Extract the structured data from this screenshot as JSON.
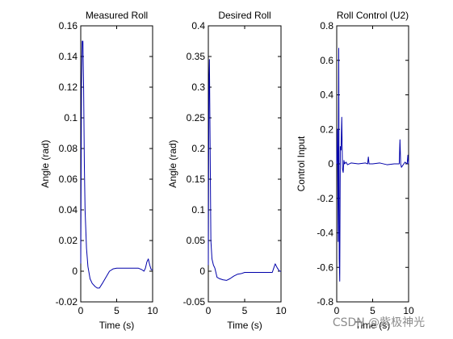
{
  "chart_data": [
    {
      "type": "line",
      "title": "Measured Roll",
      "xlabel": "Time (s)",
      "ylabel": "Angle (rad)",
      "xlim": [
        0,
        10
      ],
      "ylim": [
        -0.02,
        0.16
      ],
      "xticks": [
        0,
        5,
        10
      ],
      "xtick_labels": [
        "0",
        "5",
        "10"
      ],
      "yticks": [
        -0.02,
        0,
        0.02,
        0.04,
        0.06,
        0.08,
        0.1,
        0.12,
        0.14,
        0.16
      ],
      "ytick_labels": [
        "-0.02",
        "0",
        "0.02",
        "0.04",
        "0.06",
        "0.08",
        "0.1",
        "0.12",
        "0.14",
        "0.16"
      ],
      "grid": false,
      "line_color": "#0000aa",
      "x": [
        0,
        0.1,
        0.2,
        0.3,
        0.4,
        0.5,
        0.6,
        0.8,
        1.0,
        1.3,
        1.6,
        2.0,
        2.3,
        2.6,
        3.0,
        3.5,
        4.0,
        4.5,
        5.0,
        6.0,
        7.0,
        8.0,
        8.5,
        8.8,
        9.0,
        9.2,
        9.4,
        9.6,
        9.8,
        10.0
      ],
      "y": [
        0.005,
        0.12,
        0.15,
        0.15,
        0.12,
        0.07,
        0.04,
        0.015,
        0.003,
        -0.005,
        -0.008,
        -0.01,
        -0.011,
        -0.011,
        -0.008,
        -0.004,
        0.0,
        0.0015,
        0.002,
        0.002,
        0.002,
        0.002,
        0.001,
        0.0,
        0.002,
        0.006,
        0.008,
        0.004,
        0.001,
        0.001
      ]
    },
    {
      "type": "line",
      "title": "Desired Roll",
      "xlabel": "Time (s)",
      "ylabel": "Angle (rad)",
      "xlim": [
        0,
        10
      ],
      "ylim": [
        -0.05,
        0.4
      ],
      "xticks": [
        0,
        5,
        10
      ],
      "xtick_labels": [
        "0",
        "5",
        "10"
      ],
      "yticks": [
        -0.05,
        0,
        0.05,
        0.1,
        0.15,
        0.2,
        0.25,
        0.3,
        0.35,
        0.4
      ],
      "ytick_labels": [
        "-0.05",
        "0",
        "0.05",
        "0.1",
        "0.15",
        "0.2",
        "0.25",
        "0.3",
        "0.35",
        "0.4"
      ],
      "grid": false,
      "line_color": "#0000aa",
      "x": [
        0,
        0.08,
        0.15,
        0.25,
        0.35,
        0.5,
        0.7,
        0.9,
        1.0,
        1.2,
        1.5,
        2.0,
        2.5,
        3.0,
        3.5,
        4.0,
        4.5,
        5.0,
        6.0,
        7.0,
        8.0,
        8.8,
        9.0,
        9.2,
        9.5,
        9.8,
        10.0
      ],
      "y": [
        0.01,
        0.3,
        0.345,
        0.2,
        0.05,
        0.02,
        0.01,
        0.005,
        0.0,
        -0.01,
        -0.012,
        -0.014,
        -0.015,
        -0.012,
        -0.008,
        -0.005,
        -0.004,
        -0.002,
        -0.002,
        -0.002,
        -0.002,
        -0.002,
        0.005,
        0.012,
        0.005,
        0.0,
        0.0
      ]
    },
    {
      "type": "line",
      "title": "Roll Control (U2)",
      "xlabel": "Time (s)",
      "ylabel": "Control Input",
      "xlim": [
        0,
        10
      ],
      "ylim": [
        -0.8,
        0.8
      ],
      "xticks": [
        0,
        5,
        10
      ],
      "xtick_labels": [
        "0",
        "5",
        "10"
      ],
      "yticks": [
        -0.8,
        -0.6,
        -0.4,
        -0.2,
        0,
        0.2,
        0.4,
        0.6,
        0.8
      ],
      "ytick_labels": [
        "-0.8",
        "-0.6",
        "-0.4",
        "-0.2",
        "0",
        "0.2",
        "0.4",
        "0.6",
        "0.8"
      ],
      "grid": false,
      "line_color": "#0000aa",
      "x": [
        0,
        0.1,
        0.2,
        0.28,
        0.35,
        0.42,
        0.5,
        0.6,
        0.7,
        0.8,
        0.9,
        1.0,
        1.1,
        1.3,
        1.5,
        2.0,
        3.0,
        4.0,
        4.3,
        4.4,
        4.5,
        5.0,
        6.0,
        7.0,
        8.0,
        8.7,
        8.8,
        8.9,
        9.0,
        9.5,
        9.8,
        9.9,
        10.0
      ],
      "y": [
        0.0,
        0.2,
        -0.45,
        0.67,
        -0.55,
        -0.68,
        0.1,
        0.08,
        0.27,
        -0.03,
        -0.05,
        0.02,
        0.0,
        0.01,
        -0.005,
        0.005,
        0.0,
        0.005,
        0.0,
        0.04,
        0.0,
        0.0,
        0.005,
        -0.005,
        0.0,
        0.0,
        0.14,
        0.0,
        -0.02,
        0.01,
        0.0,
        0.05,
        0.0
      ]
    }
  ],
  "watermark": "CSDN @紫极神光"
}
